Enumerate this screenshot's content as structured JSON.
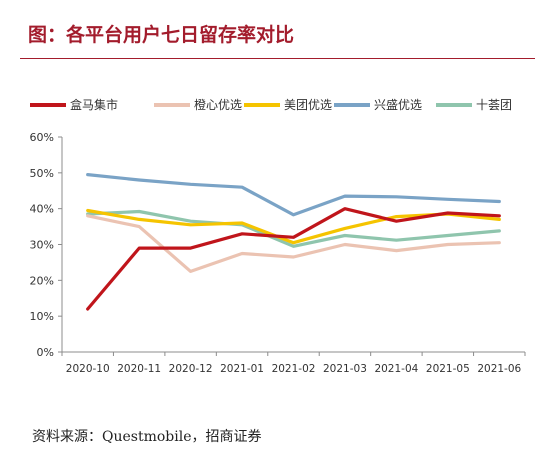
{
  "title": "图：各平台用户七日留存率对比",
  "source": "资料来源：Questmobile，招商证券",
  "chart_data": {
    "type": "line",
    "categories": [
      "2020-10",
      "2020-11",
      "2020-12",
      "2021-01",
      "2021-02",
      "2021-03",
      "2021-04",
      "2021-05",
      "2021-06"
    ],
    "ylim": [
      0,
      60
    ],
    "yticks": [
      "0%",
      "10%",
      "20%",
      "30%",
      "40%",
      "50%",
      "60%"
    ],
    "grid": false,
    "legend_position": "top",
    "series": [
      {
        "name": "盒马集市",
        "color": "#c0151b",
        "values": [
          12,
          29,
          29,
          33,
          32,
          40,
          36.5,
          38.8,
          38
        ]
      },
      {
        "name": "橙心优选",
        "color": "#ebc3b2",
        "values": [
          38,
          35,
          22.5,
          27.5,
          26.5,
          30,
          28.3,
          30,
          30.5
        ]
      },
      {
        "name": "美团优选",
        "color": "#f5c400",
        "values": [
          39.5,
          37,
          35.5,
          36,
          30.5,
          34.5,
          37.8,
          38.5,
          37
        ]
      },
      {
        "name": "兴盛优选",
        "color": "#7aa3c6",
        "values": [
          49.5,
          48,
          46.8,
          46,
          38.3,
          43.5,
          43.3,
          42.6,
          42
        ]
      },
      {
        "name": "十荟团",
        "color": "#8fc5ad",
        "values": [
          38.5,
          39.2,
          36.5,
          35.5,
          29.5,
          32.5,
          31.2,
          32.5,
          33.8
        ]
      }
    ]
  }
}
